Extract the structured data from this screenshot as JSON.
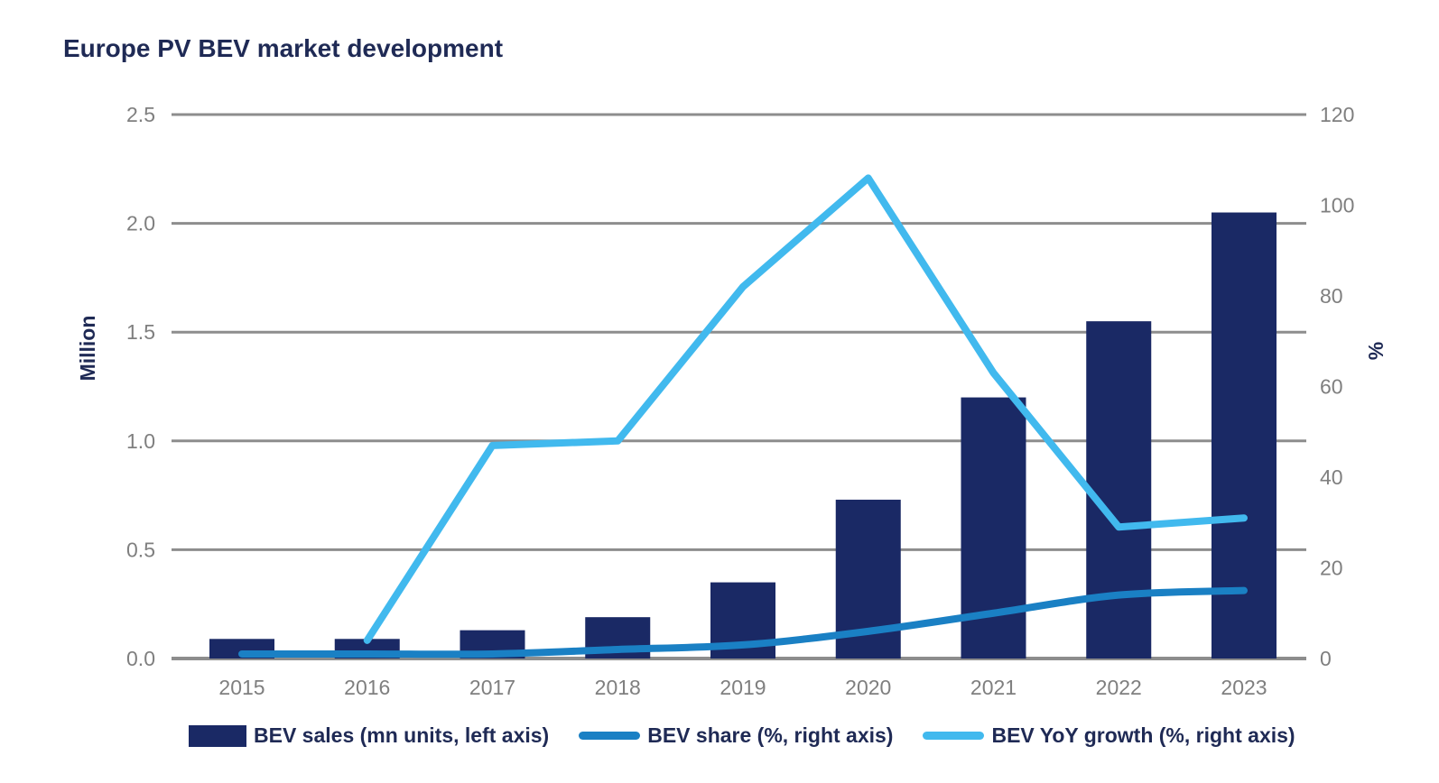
{
  "chart_data": {
    "type": "combo",
    "title": "Europe PV BEV market development",
    "categories": [
      "2015",
      "2016",
      "2017",
      "2018",
      "2019",
      "2020",
      "2021",
      "2022",
      "2023"
    ],
    "series": [
      {
        "name": "BEV sales (mn units, left axis)",
        "type": "bar",
        "axis": "left",
        "color": "#1a2965",
        "values": [
          0.09,
          0.09,
          0.13,
          0.19,
          0.35,
          0.73,
          1.2,
          1.55,
          2.05
        ]
      },
      {
        "name": "BEV share (%, right axis)",
        "type": "line",
        "axis": "right",
        "smooth": true,
        "color": "#1a80c4",
        "values": [
          1,
          1,
          1,
          2,
          3,
          6,
          10,
          14,
          15
        ]
      },
      {
        "name": "BEV YoY growth (%, right axis)",
        "type": "line",
        "axis": "right",
        "smooth": false,
        "color": "#41b9ee",
        "values": [
          null,
          4,
          47,
          48,
          82,
          106,
          63,
          29,
          31
        ]
      }
    ],
    "left_axis": {
      "label": "Million",
      "ticks": [
        "0.0",
        "0.5",
        "1.0",
        "1.5",
        "2.0",
        "2.5"
      ],
      "min": 0,
      "max": 2.5
    },
    "right_axis": {
      "label": "%",
      "ticks": [
        0,
        20,
        40,
        60,
        80,
        100,
        120
      ],
      "min": 0,
      "max": 120
    },
    "grid": true,
    "legend_position": "bottom",
    "colors": {
      "gridline": "#8d8d8d",
      "tick_text": "#7f7f7f",
      "title_text": "#1f2a55"
    }
  }
}
